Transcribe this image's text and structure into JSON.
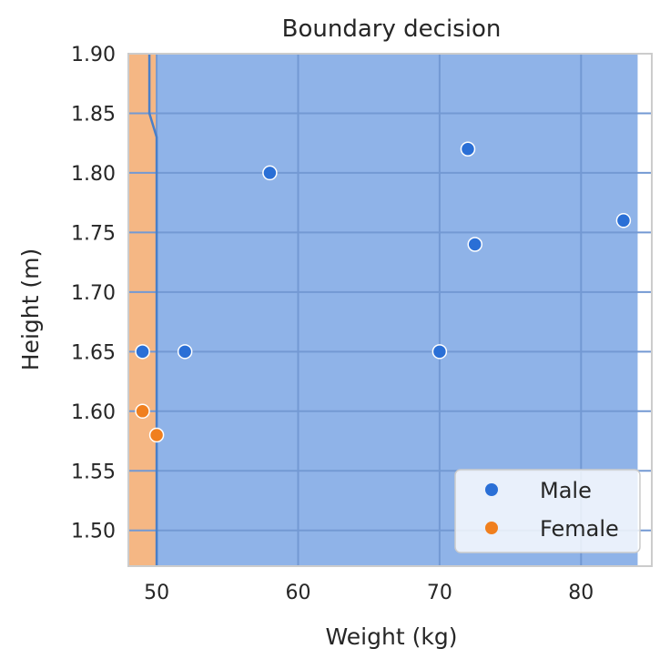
{
  "chart_data": {
    "type": "scatter",
    "title": "Boundary decision",
    "xlabel": "Weight (kg)",
    "ylabel": "Height (m)",
    "xlim": [
      48,
      85
    ],
    "ylim": [
      1.47,
      1.9
    ],
    "xticks": [
      "50",
      "60",
      "70",
      "80"
    ],
    "xtick_values": [
      50,
      60,
      70,
      80
    ],
    "yticks": [
      "1.50",
      "1.55",
      "1.60",
      "1.65",
      "1.70",
      "1.75",
      "1.80",
      "1.85",
      "1.90"
    ],
    "ytick_values": [
      1.5,
      1.55,
      1.6,
      1.65,
      1.7,
      1.75,
      1.8,
      1.85,
      1.9
    ],
    "grid": true,
    "legend_position": "bottom-right",
    "series": [
      {
        "name": "Male",
        "color": "#2a6fd6",
        "points": [
          {
            "x": 49,
            "y": 1.65
          },
          {
            "x": 52,
            "y": 1.65
          },
          {
            "x": 58,
            "y": 1.8
          },
          {
            "x": 70,
            "y": 1.65
          },
          {
            "x": 72,
            "y": 1.82
          },
          {
            "x": 72.5,
            "y": 1.74
          },
          {
            "x": 83,
            "y": 1.76
          }
        ]
      },
      {
        "name": "Female",
        "color": "#f07f1e",
        "points": [
          {
            "x": 49,
            "y": 1.6
          },
          {
            "x": 50,
            "y": 1.58
          }
        ]
      }
    ],
    "regions": [
      {
        "class": "Female",
        "color": "#f5b784",
        "x_to": 50,
        "y_range": [
          1.47,
          1.9
        ]
      },
      {
        "class": "Male",
        "color": "#8fb3e8",
        "x_from": 50,
        "x_to": 84,
        "y_range": [
          1.47,
          1.9
        ]
      }
    ]
  }
}
